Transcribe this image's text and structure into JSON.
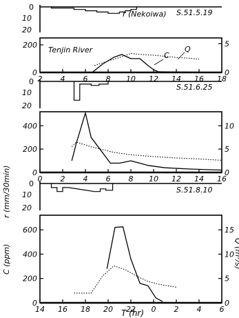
{
  "figure": {
    "river_label": "Tenjin   River",
    "y_label_left_rain": "r (mm/30min)",
    "y_label_left_conc": "C (ppm)",
    "y_label_right_flow": "Q (m³/s)",
    "x_label": "T (hr)"
  },
  "chart_data": [
    {
      "type": "bar",
      "panel": "rain",
      "date_label": "S.51.5.19",
      "series_label": "r (Nekoiwa)",
      "yticks": [
        "0",
        "10",
        "20"
      ],
      "ylim": [
        0,
        20
      ],
      "inverted": true,
      "bars": [
        {
          "x0": 3.0,
          "x1": 5.0,
          "value": 1
        },
        {
          "x0": 5.0,
          "x1": 6.0,
          "value": 2
        },
        {
          "x0": 6.0,
          "x1": 7.0,
          "value": 3
        },
        {
          "x0": 7.0,
          "x1": 8.0,
          "value": 4
        },
        {
          "x0": 8.0,
          "x1": 9.0,
          "value": 5
        },
        {
          "x0": 9.0,
          "x1": 9.5,
          "value": 4
        },
        {
          "x0": 9.5,
          "x1": 10.0,
          "value": 3
        },
        {
          "x0": 10.0,
          "x1": 10.5,
          "value": 2
        }
      ]
    },
    {
      "type": "line",
      "panel": "main",
      "xlim": [
        2,
        18
      ],
      "xticks": [
        "2",
        "4",
        "6",
        "8",
        "10",
        "12",
        "14",
        "16",
        "18"
      ],
      "ylim": [
        0,
        250
      ],
      "yticks": [
        "0",
        "200"
      ],
      "y2lim": [
        0,
        6
      ],
      "y2ticks": [
        "0",
        "5"
      ],
      "series": [
        {
          "name": "C",
          "axis": "left",
          "style": "solid",
          "x": [
            6.6,
            7.5,
            8.5,
            9.2,
            10.0,
            10.8,
            11.5,
            12.0,
            12.4
          ],
          "y": [
            0,
            60,
            110,
            130,
            100,
            100,
            50,
            20,
            5
          ]
        },
        {
          "name": "Q",
          "axis": "right",
          "style": "dotted",
          "x": [
            6.8,
            8.0,
            9.0,
            10.0,
            11.0,
            12.0,
            13.0,
            14.0,
            15.0,
            16.0
          ],
          "y": [
            1.2,
            2.0,
            2.6,
            3.3,
            3.1,
            3.0,
            2.8,
            2.6,
            2.5,
            2.3
          ]
        },
        {
          "name": "",
          "axis": "left",
          "style": "solid",
          "x": [
            12.4,
            14.0,
            16.0
          ],
          "y": [
            5,
            3,
            2
          ]
        }
      ]
    },
    {
      "type": "bar",
      "panel": "rain",
      "date_label": "S.51.6.25",
      "yticks": [
        "0",
        "10",
        "20"
      ],
      "ylim": [
        0,
        20
      ],
      "inverted": true,
      "bars": [
        {
          "x0": 3.0,
          "x1": 3.5,
          "value": 14
        },
        {
          "x0": 3.5,
          "x1": 4.5,
          "value": 2
        },
        {
          "x0": 4.5,
          "x1": 5.2,
          "value": 3
        },
        {
          "x0": 5.2,
          "x1": 6.0,
          "value": 2
        }
      ]
    },
    {
      "type": "line",
      "panel": "main",
      "xlim": [
        0,
        16
      ],
      "xticks": [
        "0",
        "2",
        "4",
        "6",
        "8",
        "10",
        "12",
        "14",
        "16"
      ],
      "ylim": [
        0,
        520
      ],
      "yticks": [
        "0",
        "200",
        "400"
      ],
      "y2lim": [
        0,
        13
      ],
      "y2ticks": [
        "0",
        "5",
        "10"
      ],
      "series": [
        {
          "name": "C",
          "axis": "left",
          "style": "solid",
          "x": [
            2.8,
            3.2,
            3.6,
            4.0,
            4.5,
            5.5,
            6.2,
            7.0,
            8.0,
            9.5,
            11.0,
            13.0,
            16.0
          ],
          "y": [
            100,
            250,
            380,
            510,
            300,
            170,
            80,
            80,
            100,
            60,
            40,
            30,
            20
          ]
        },
        {
          "name": "Q",
          "axis": "right",
          "style": "dotted",
          "x": [
            2.8,
            3.2,
            3.6,
            4.5,
            5.5,
            6.5,
            8.0,
            10.0,
            12.0,
            14.0,
            16.0
          ],
          "y": [
            5.5,
            6.5,
            6.2,
            5.5,
            4.9,
            4.3,
            3.8,
            3.4,
            3.1,
            2.9,
            2.6
          ]
        }
      ]
    },
    {
      "type": "bar",
      "panel": "rain",
      "date_label": "S.51.8.10",
      "yticks": [
        "0",
        "10",
        "20"
      ],
      "ylim": [
        0,
        20
      ],
      "inverted": true,
      "bars": [
        {
          "x0": 15.0,
          "x1": 15.5,
          "value": 3
        },
        {
          "x0": 15.5,
          "x1": 16.0,
          "value": 6
        },
        {
          "x0": 16.0,
          "x1": 16.5,
          "value": 3
        },
        {
          "x0": 18.8,
          "x1": 19.3,
          "value": 6
        },
        {
          "x0": 19.3,
          "x1": 19.8,
          "value": 4
        },
        {
          "x0": 19.8,
          "x1": 20.4,
          "value": 5
        }
      ]
    },
    {
      "type": "line",
      "panel": "main",
      "xlim": [
        14,
        30
      ],
      "xticks": [
        "14",
        "16",
        "18",
        "20",
        "22",
        "0",
        "2",
        "4",
        "6"
      ],
      "ylim": [
        0,
        720
      ],
      "yticks": [
        "0",
        "200",
        "400",
        "600"
      ],
      "y2lim": [
        0,
        18
      ],
      "y2ticks": [
        "0",
        "5",
        "10",
        "15"
      ],
      "series": [
        {
          "name": "C",
          "axis": "left",
          "style": "solid",
          "x": [
            19.9,
            20.6,
            21.3,
            22.0,
            22.8,
            23.5,
            24.2,
            24.8
          ],
          "y": [
            280,
            620,
            625,
            360,
            160,
            140,
            40,
            10
          ]
        },
        {
          "name": "Q",
          "axis": "right",
          "style": "dotted",
          "x": [
            17.0,
            18.5,
            19.5,
            20.5,
            21.5,
            22.5,
            23.5,
            24.5,
            25.5,
            26.0
          ],
          "y": [
            2.0,
            2.0,
            5.5,
            7.6,
            6.8,
            5.5,
            4.4,
            3.8,
            3.4,
            3.2
          ]
        }
      ]
    }
  ]
}
